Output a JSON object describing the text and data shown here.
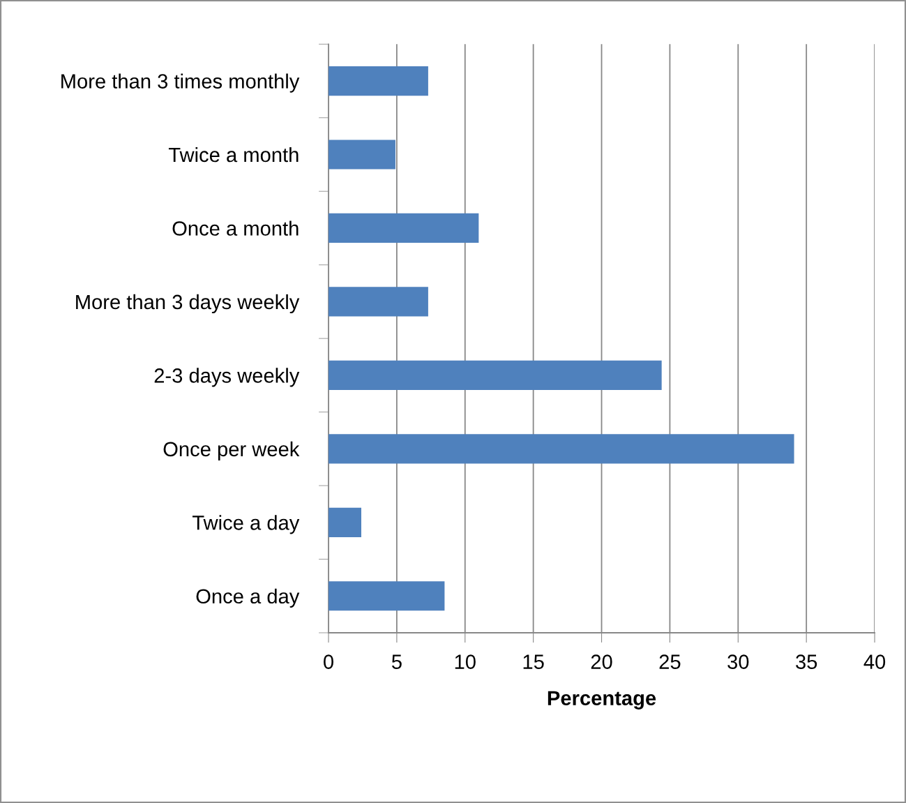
{
  "chart_data": {
    "type": "bar",
    "orientation": "horizontal",
    "xlabel": "Percentage",
    "categories": [
      "More than 3 times monthly",
      "Twice a month",
      "Once a month",
      "More than 3 days weekly",
      "2-3 days weekly",
      "Once per week",
      "Twice a day",
      "Once a day"
    ],
    "values": [
      7.3,
      4.9,
      11.0,
      7.3,
      24.4,
      34.1,
      2.4,
      8.5
    ],
    "color": "#4f81bd",
    "xlim": [
      0,
      40
    ],
    "xticks": [
      0,
      5,
      10,
      15,
      20,
      25,
      30,
      35,
      40
    ],
    "grid": "x",
    "legend": false
  }
}
